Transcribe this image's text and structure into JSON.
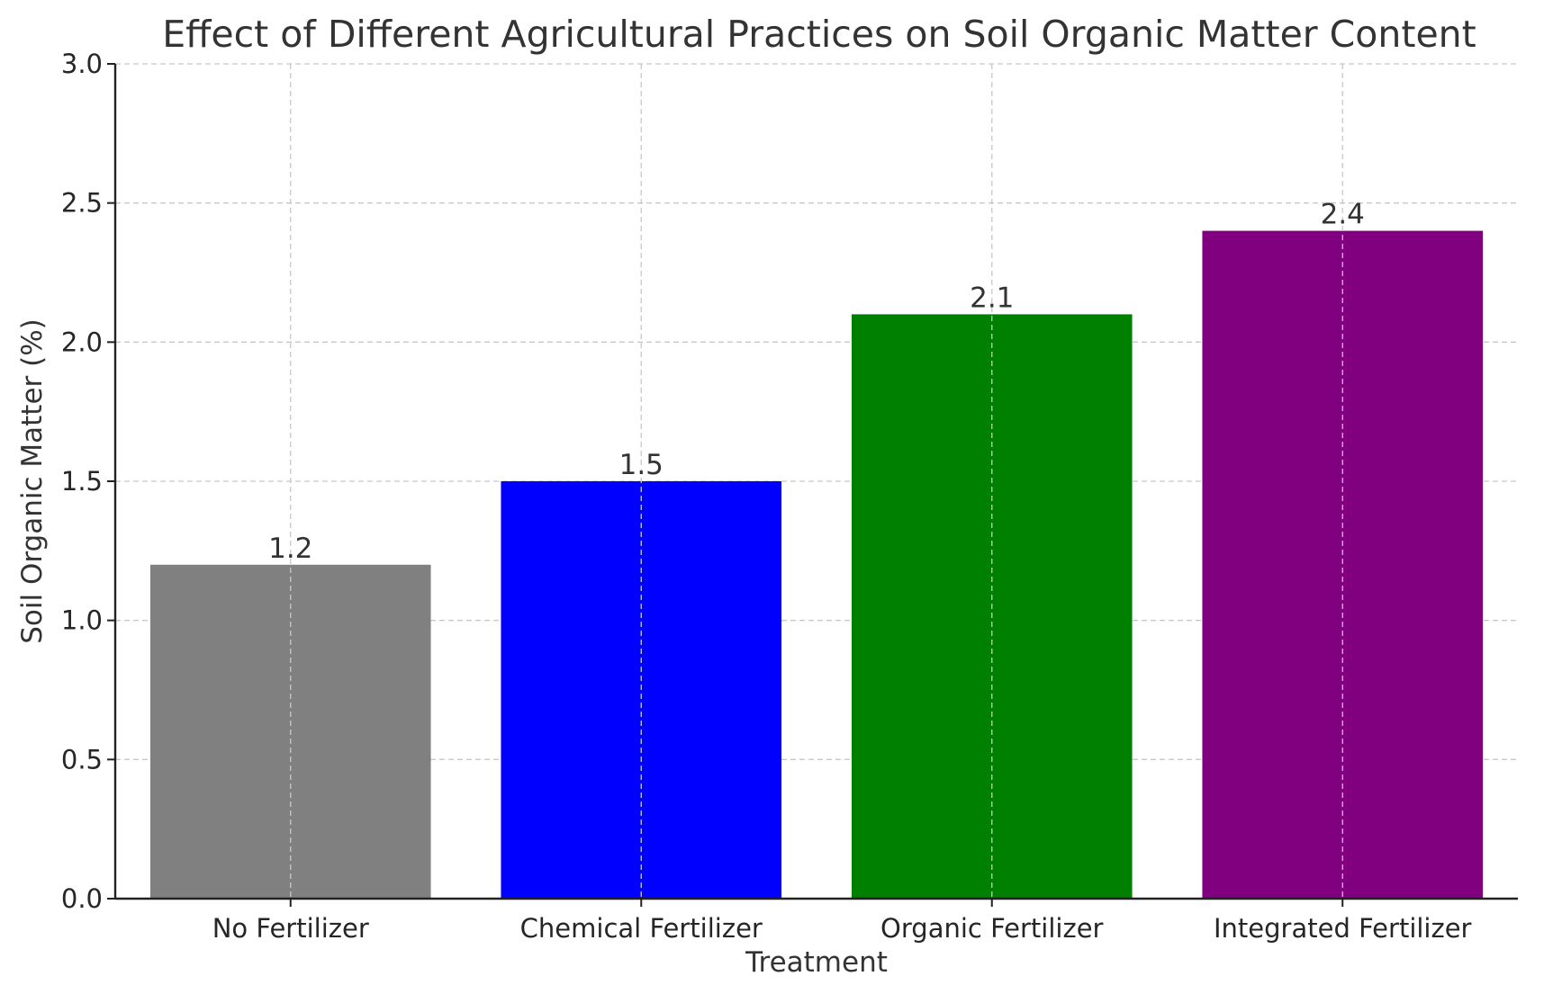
{
  "chart_data": {
    "type": "bar",
    "title": "Effect of Different Agricultural Practices on Soil Organic Matter Content",
    "xlabel": "Treatment",
    "ylabel": "Soil Organic Matter (%)",
    "categories": [
      "No Fertilizer",
      "Chemical Fertilizer",
      "Organic Fertilizer",
      "Integrated Fertilizer"
    ],
    "values": [
      1.2,
      1.5,
      2.1,
      2.4
    ],
    "value_labels": [
      "1.2",
      "1.5",
      "2.1",
      "2.4"
    ],
    "colors": [
      "#808080",
      "#0000ff",
      "#008000",
      "#800080"
    ],
    "ylim": [
      0,
      3.0
    ],
    "yticks": [
      0.0,
      0.5,
      1.0,
      1.5,
      2.0,
      2.5,
      3.0
    ],
    "ytick_labels": [
      "0.0",
      "0.5",
      "1.0",
      "1.5",
      "2.0",
      "2.5",
      "3.0"
    ],
    "grid": true,
    "grid_style": "dashed"
  }
}
